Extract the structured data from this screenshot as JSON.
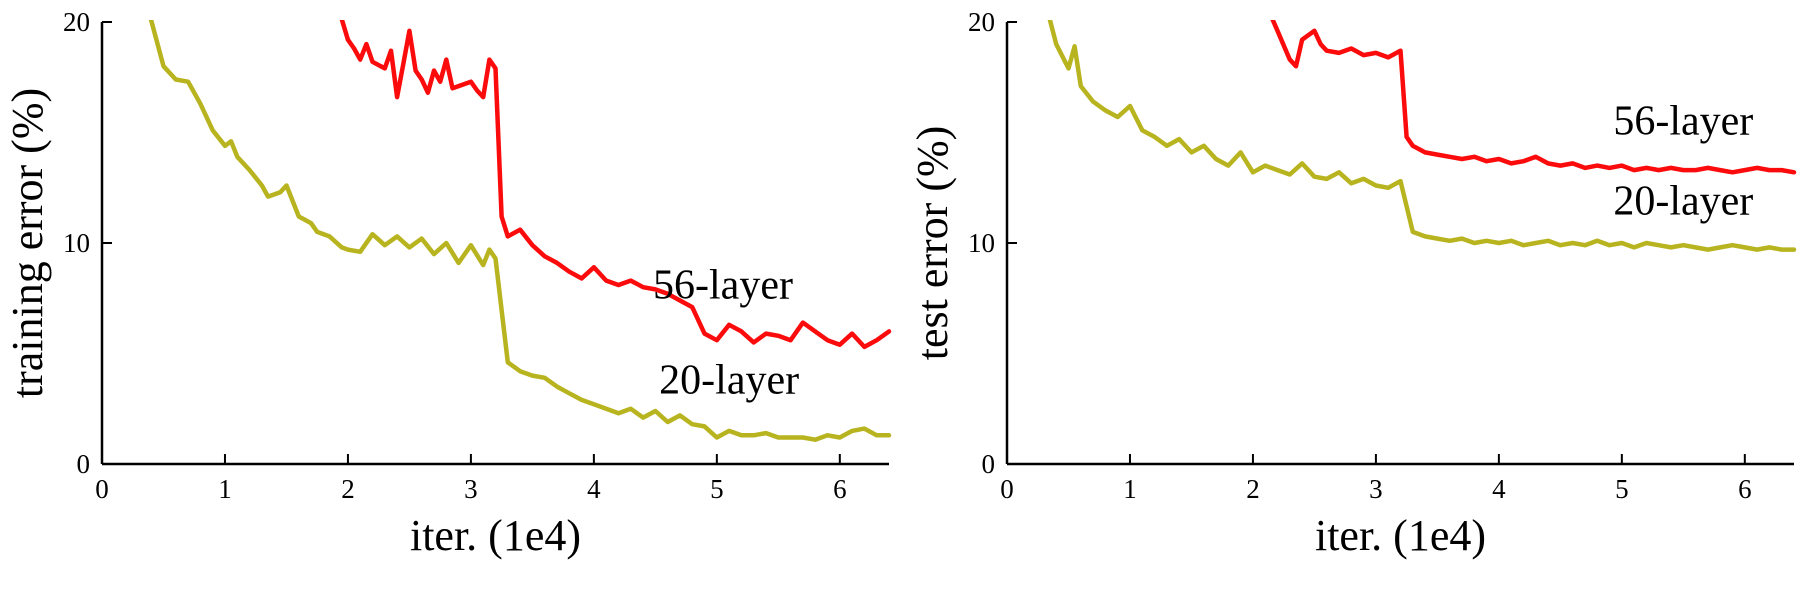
{
  "figure": {
    "background": "#ffffff",
    "axis_color": "#000000",
    "text_color": "#000000"
  },
  "chart_data": [
    {
      "type": "line",
      "title": "",
      "xlabel": "iter. (1e4)",
      "ylabel": "training error (%)",
      "xlim": [
        0,
        6.4
      ],
      "ylim": [
        0,
        20
      ],
      "xticks": [
        0,
        1,
        2,
        3,
        4,
        5,
        6
      ],
      "yticks": [
        0,
        10,
        20
      ],
      "grid": false,
      "legend_position": "inline-annotations",
      "annotations": [
        {
          "text": "56-layer",
          "x": 5.05,
          "y": 7.5
        },
        {
          "text": "20-layer",
          "x": 5.1,
          "y": 3.2
        }
      ],
      "series": [
        {
          "name": "56-layer",
          "color": "#fb0b0b",
          "x": [
            1.93,
            2.0,
            2.05,
            2.1,
            2.15,
            2.2,
            2.3,
            2.35,
            2.4,
            2.45,
            2.5,
            2.55,
            2.6,
            2.65,
            2.7,
            2.75,
            2.8,
            2.85,
            2.9,
            3.0,
            3.05,
            3.1,
            3.15,
            3.2,
            3.25,
            3.3,
            3.4,
            3.5,
            3.6,
            3.7,
            3.8,
            3.9,
            4.0,
            4.1,
            4.2,
            4.3,
            4.4,
            4.5,
            4.6,
            4.7,
            4.8,
            4.9,
            5.0,
            5.1,
            5.2,
            5.3,
            5.4,
            5.5,
            5.6,
            5.7,
            5.8,
            5.9,
            6.0,
            6.1,
            6.2,
            6.3,
            6.4
          ],
          "y": [
            20.5,
            19.2,
            18.8,
            18.3,
            19.0,
            18.2,
            17.9,
            18.7,
            16.6,
            18.1,
            19.6,
            17.8,
            17.4,
            16.8,
            17.8,
            17.3,
            18.3,
            17.0,
            17.1,
            17.3,
            16.9,
            16.6,
            18.3,
            17.9,
            11.2,
            10.3,
            10.6,
            9.9,
            9.4,
            9.1,
            8.7,
            8.4,
            8.9,
            8.3,
            8.1,
            8.3,
            8.0,
            7.9,
            7.7,
            7.4,
            7.1,
            5.9,
            5.6,
            6.3,
            6.0,
            5.5,
            5.9,
            5.8,
            5.6,
            6.4,
            6.0,
            5.6,
            5.4,
            5.9,
            5.3,
            5.6,
            6.0
          ]
        },
        {
          "name": "20-layer",
          "color": "#b8b41f",
          "x": [
            0.38,
            0.5,
            0.6,
            0.7,
            0.8,
            0.9,
            1.0,
            1.05,
            1.1,
            1.2,
            1.3,
            1.35,
            1.45,
            1.5,
            1.6,
            1.7,
            1.75,
            1.85,
            1.95,
            2.0,
            2.1,
            2.2,
            2.3,
            2.4,
            2.5,
            2.6,
            2.7,
            2.8,
            2.9,
            3.0,
            3.1,
            3.15,
            3.2,
            3.3,
            3.4,
            3.5,
            3.6,
            3.7,
            3.8,
            3.9,
            4.0,
            4.1,
            4.2,
            4.3,
            4.4,
            4.5,
            4.6,
            4.7,
            4.8,
            4.9,
            5.0,
            5.1,
            5.2,
            5.3,
            5.4,
            5.5,
            5.6,
            5.7,
            5.8,
            5.9,
            6.0,
            6.1,
            6.2,
            6.3,
            6.4
          ],
          "y": [
            20.5,
            18.0,
            17.4,
            17.3,
            16.3,
            15.1,
            14.4,
            14.6,
            13.9,
            13.3,
            12.6,
            12.1,
            12.3,
            12.6,
            11.2,
            10.9,
            10.5,
            10.3,
            9.8,
            9.7,
            9.6,
            10.4,
            9.9,
            10.3,
            9.8,
            10.2,
            9.5,
            10.0,
            9.1,
            9.9,
            9.0,
            9.7,
            9.3,
            4.6,
            4.2,
            4.0,
            3.9,
            3.5,
            3.2,
            2.9,
            2.7,
            2.5,
            2.3,
            2.5,
            2.1,
            2.4,
            1.9,
            2.2,
            1.8,
            1.7,
            1.2,
            1.5,
            1.3,
            1.3,
            1.4,
            1.2,
            1.2,
            1.2,
            1.1,
            1.3,
            1.2,
            1.5,
            1.6,
            1.3,
            1.3
          ]
        }
      ]
    },
    {
      "type": "line",
      "title": "",
      "xlabel": "iter. (1e4)",
      "ylabel": "test error (%)",
      "xlim": [
        0,
        6.4
      ],
      "ylim": [
        0,
        20
      ],
      "xticks": [
        0,
        1,
        2,
        3,
        4,
        5,
        6
      ],
      "yticks": [
        0,
        10,
        20
      ],
      "grid": false,
      "legend_position": "inline-annotations",
      "annotations": [
        {
          "text": "56-layer",
          "x": 5.5,
          "y": 14.9
        },
        {
          "text": "20-layer",
          "x": 5.5,
          "y": 11.3
        }
      ],
      "series": [
        {
          "name": "56-layer",
          "color": "#fb0b0b",
          "x": [
            2.13,
            2.2,
            2.3,
            2.35,
            2.4,
            2.5,
            2.55,
            2.6,
            2.7,
            2.8,
            2.9,
            3.0,
            3.1,
            3.2,
            3.25,
            3.3,
            3.4,
            3.5,
            3.6,
            3.7,
            3.8,
            3.9,
            4.0,
            4.1,
            4.2,
            4.3,
            4.4,
            4.5,
            4.6,
            4.7,
            4.8,
            4.9,
            5.0,
            5.1,
            5.2,
            5.3,
            5.4,
            5.5,
            5.6,
            5.7,
            5.8,
            5.9,
            6.0,
            6.1,
            6.2,
            6.3,
            6.4
          ],
          "y": [
            20.5,
            19.6,
            18.3,
            18.0,
            19.2,
            19.6,
            19.0,
            18.7,
            18.6,
            18.8,
            18.5,
            18.6,
            18.4,
            18.7,
            14.8,
            14.4,
            14.1,
            14.0,
            13.9,
            13.8,
            13.9,
            13.7,
            13.8,
            13.6,
            13.7,
            13.9,
            13.6,
            13.5,
            13.6,
            13.4,
            13.5,
            13.4,
            13.5,
            13.3,
            13.4,
            13.3,
            13.4,
            13.3,
            13.3,
            13.4,
            13.3,
            13.2,
            13.3,
            13.4,
            13.3,
            13.3,
            13.2
          ]
        },
        {
          "name": "20-layer",
          "color": "#b8b41f",
          "x": [
            0.33,
            0.4,
            0.5,
            0.55,
            0.6,
            0.7,
            0.8,
            0.9,
            1.0,
            1.1,
            1.2,
            1.3,
            1.4,
            1.5,
            1.6,
            1.7,
            1.8,
            1.9,
            2.0,
            2.1,
            2.2,
            2.3,
            2.4,
            2.5,
            2.6,
            2.7,
            2.8,
            2.9,
            3.0,
            3.1,
            3.2,
            3.3,
            3.4,
            3.5,
            3.6,
            3.7,
            3.8,
            3.9,
            4.0,
            4.1,
            4.2,
            4.3,
            4.4,
            4.5,
            4.6,
            4.7,
            4.8,
            4.9,
            5.0,
            5.1,
            5.2,
            5.3,
            5.4,
            5.5,
            5.6,
            5.7,
            5.8,
            5.9,
            6.0,
            6.1,
            6.2,
            6.3,
            6.4
          ],
          "y": [
            20.5,
            19.0,
            17.9,
            18.9,
            17.1,
            16.4,
            16.0,
            15.7,
            16.2,
            15.1,
            14.8,
            14.4,
            14.7,
            14.1,
            14.4,
            13.8,
            13.5,
            14.1,
            13.2,
            13.5,
            13.3,
            13.1,
            13.6,
            13.0,
            12.9,
            13.2,
            12.7,
            12.9,
            12.6,
            12.5,
            12.8,
            10.5,
            10.3,
            10.2,
            10.1,
            10.2,
            10.0,
            10.1,
            10.0,
            10.1,
            9.9,
            10.0,
            10.1,
            9.9,
            10.0,
            9.9,
            10.1,
            9.9,
            10.0,
            9.8,
            10.0,
            9.9,
            9.8,
            9.9,
            9.8,
            9.7,
            9.8,
            9.9,
            9.8,
            9.7,
            9.8,
            9.7,
            9.7
          ]
        }
      ]
    }
  ]
}
